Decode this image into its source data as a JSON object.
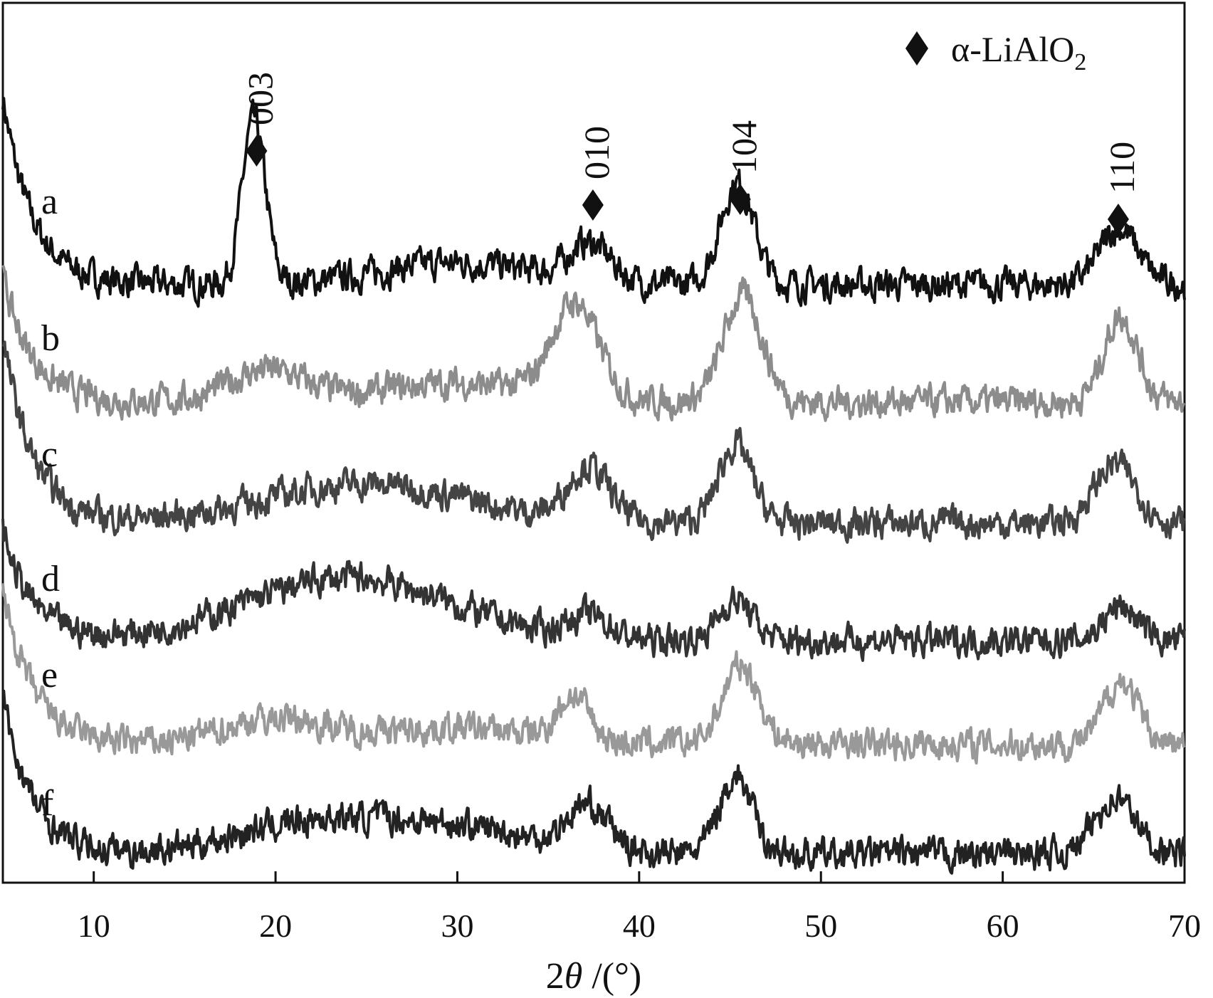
{
  "chart_data": {
    "type": "line",
    "xlabel_prefix": "2",
    "xlabel_theta": "θ",
    "xlabel_suffix": " /(°)",
    "xlim": [
      5,
      70
    ],
    "xticks": [
      10,
      20,
      30,
      40,
      50,
      60,
      70
    ],
    "xtick_labels": [
      "10",
      "20",
      "30",
      "40",
      "50",
      "60",
      "70"
    ],
    "y_axis_ticks": false,
    "legend": {
      "position": "top-right",
      "marker": "diamond",
      "text_main": "α-LiAlO",
      "text_sub": "2"
    },
    "peak_marker": "diamond",
    "peaks": [
      {
        "label": "003",
        "x": 18.8
      },
      {
        "label": "010",
        "x": 37.3
      },
      {
        "label": "104",
        "x": 45.4
      },
      {
        "label": "110",
        "x": 66.2
      }
    ],
    "series": [
      {
        "name": "a",
        "color": "#111111",
        "offset": 0,
        "base": 1.0,
        "peaks": [
          [
            18.8,
            10.5,
            0.9
          ],
          [
            37.3,
            2.4,
            1.6
          ],
          [
            45.4,
            6.5,
            1.3
          ],
          [
            66.4,
            3.6,
            1.5
          ]
        ],
        "humps": [
          [
            30,
            1.4,
            6
          ]
        ],
        "lowstart": 12
      },
      {
        "name": "b",
        "color": "#8c8c8c",
        "offset": 1,
        "base": 1.0,
        "peaks": [
          [
            36.5,
            6.0,
            1.8
          ],
          [
            45.7,
            6.8,
            1.5
          ],
          [
            66.5,
            5.5,
            1.3
          ]
        ],
        "humps": [
          [
            19.5,
            2.0,
            3
          ],
          [
            30,
            1.2,
            6
          ]
        ],
        "lowstart": 8
      },
      {
        "name": "c",
        "color": "#444444",
        "offset": 2,
        "base": 1.0,
        "peaks": [
          [
            37.2,
            3.4,
            1.6
          ],
          [
            45.3,
            5.0,
            1.3
          ],
          [
            66.2,
            3.8,
            1.6
          ]
        ],
        "humps": [
          [
            25,
            2.5,
            8
          ]
        ],
        "lowstart": 12
      },
      {
        "name": "d",
        "color": "#333333",
        "offset": 3,
        "base": 1.0,
        "peaks": [
          [
            37.2,
            1.4,
            1.6
          ],
          [
            45.3,
            2.6,
            1.3
          ],
          [
            66.5,
            2.2,
            1.3
          ]
        ],
        "humps": [
          [
            24,
            4.0,
            8
          ]
        ],
        "lowstart": 7
      },
      {
        "name": "e",
        "color": "#999999",
        "offset": 4,
        "base": 1.0,
        "peaks": [
          [
            36.4,
            2.8,
            1.2
          ],
          [
            45.6,
            5.0,
            1.4
          ],
          [
            66.5,
            4.0,
            1.3
          ]
        ],
        "humps": [
          [
            20,
            1.6,
            4
          ],
          [
            30,
            1.0,
            6
          ]
        ],
        "lowstart": 10
      },
      {
        "name": "f",
        "color": "#222222",
        "offset": 5,
        "base": 1.0,
        "peaks": [
          [
            37.2,
            2.8,
            1.6
          ],
          [
            45.3,
            5.0,
            1.3
          ],
          [
            66.2,
            3.6,
            1.6
          ]
        ],
        "humps": [
          [
            22,
            2.0,
            6
          ],
          [
            30,
            1.6,
            6
          ]
        ],
        "lowstart": 10
      }
    ]
  }
}
